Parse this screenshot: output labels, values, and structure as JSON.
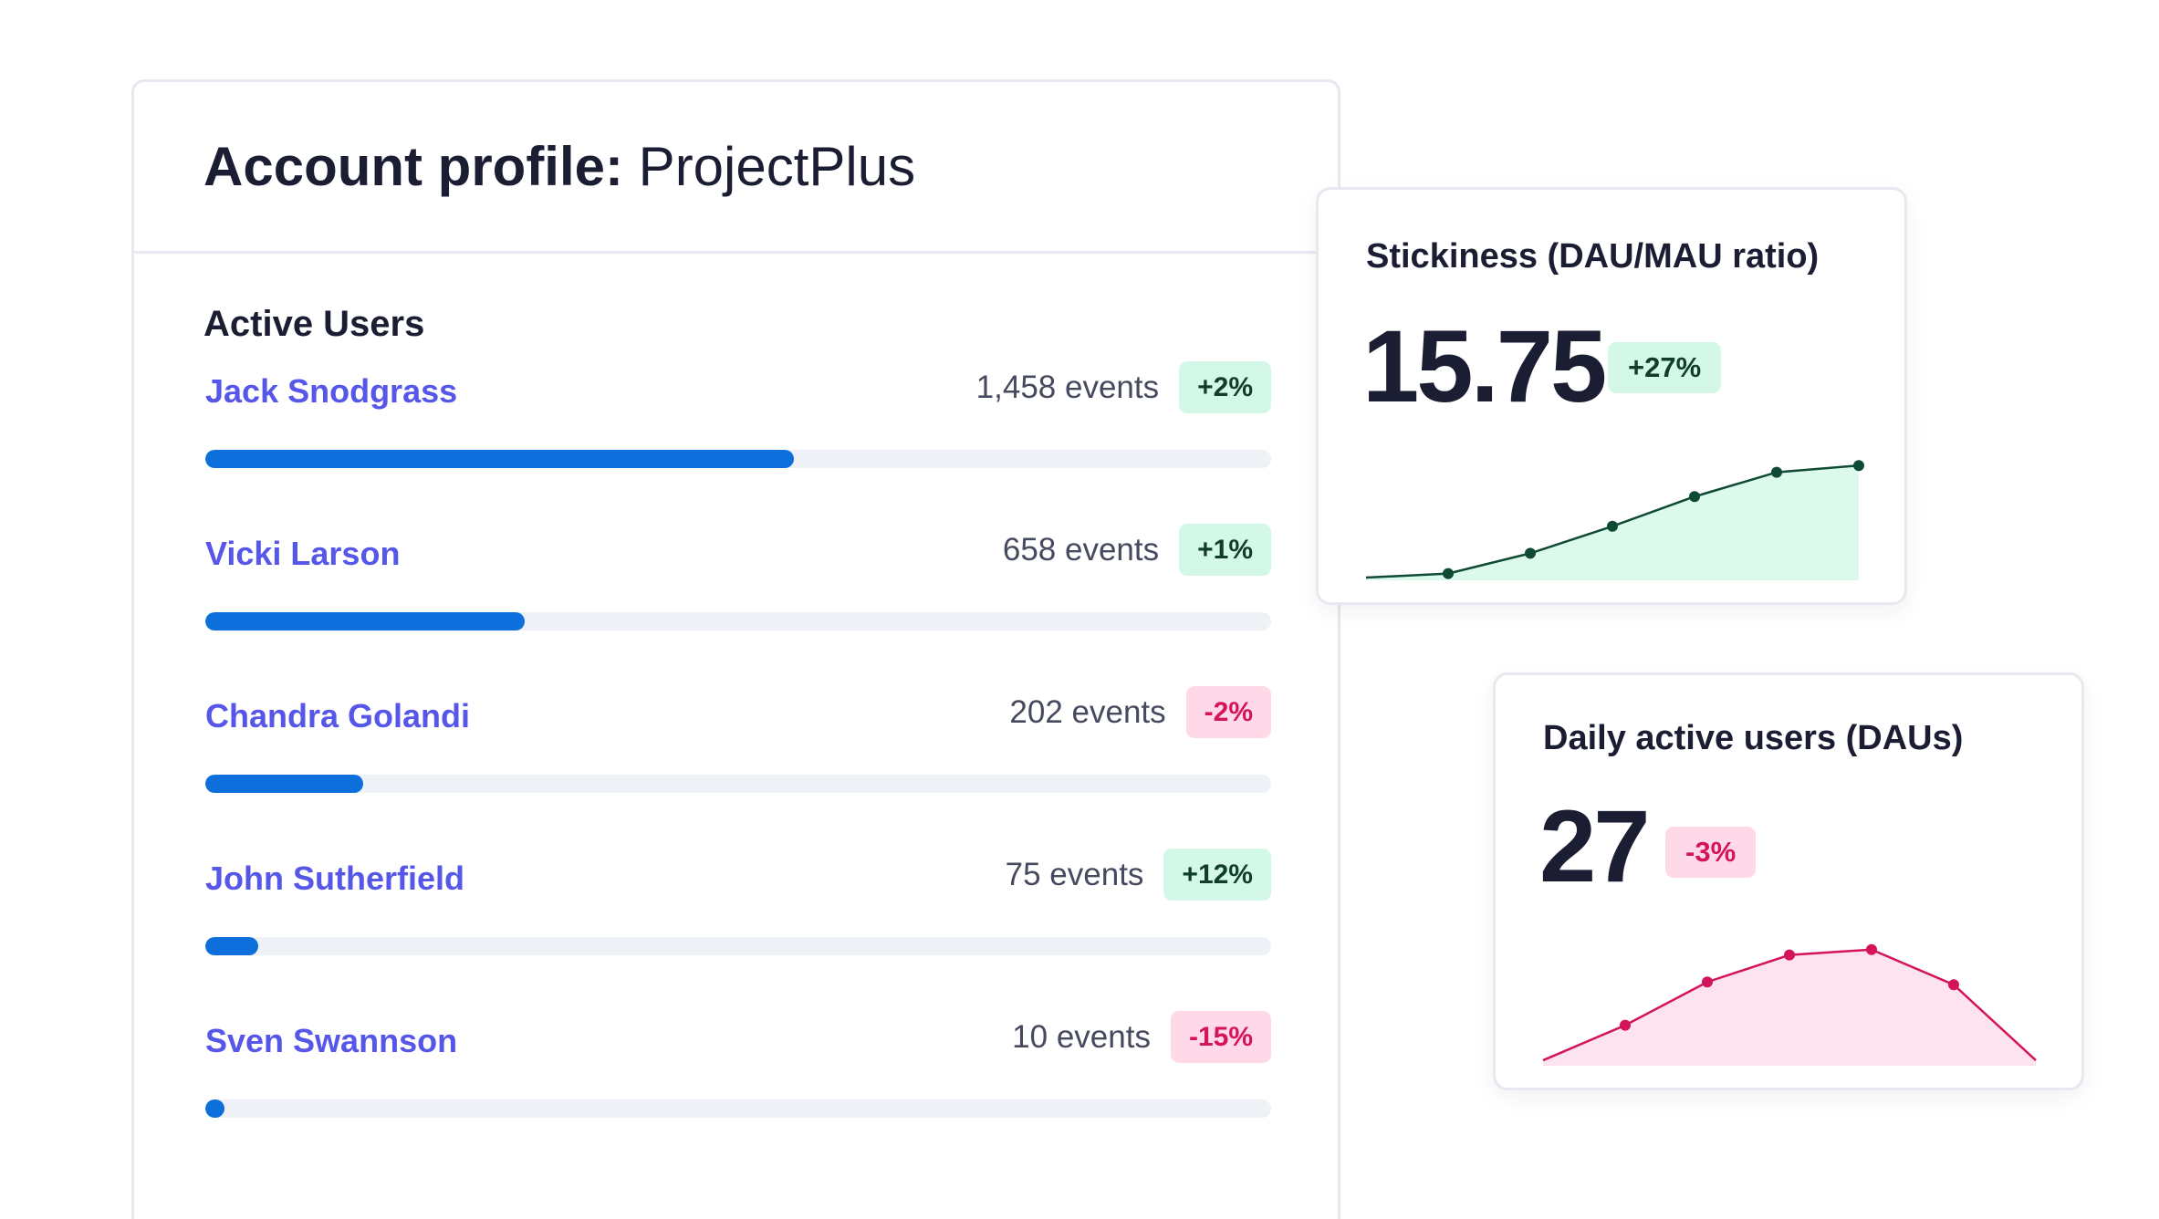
{
  "account": {
    "title_prefix": "Account profile:",
    "name": "ProjectPlus",
    "section_title": "Active Users",
    "users": [
      {
        "name": "Jack Snodgrass",
        "events": "1,458 events",
        "change": "+2%",
        "trend": "up",
        "progress": 0.552
      },
      {
        "name": "Vicki Larson",
        "events": "658 events",
        "change": "+1%",
        "trend": "up",
        "progress": 0.3
      },
      {
        "name": "Chandra Golandi",
        "events": "202 events",
        "change": "-2%",
        "trend": "down",
        "progress": 0.148
      },
      {
        "name": "John Sutherfield",
        "events": "75 events",
        "change": "+12%",
        "trend": "up",
        "progress": 0.05
      },
      {
        "name": "Sven Swannson",
        "events": "10 events",
        "change": "-15%",
        "trend": "down",
        "progress": 0.018
      }
    ]
  },
  "stickiness": {
    "title": "Stickiness (DAU/MAU ratio)",
    "value": "15.75",
    "change": "+27%"
  },
  "dau": {
    "title": "Daily active users (DAUs)",
    "value": "27",
    "change": "-3%"
  },
  "colors": {
    "accent_name": "#5656e8",
    "bar_fill": "#0d6fdb",
    "bar_track": "#eef1f6",
    "positive_bg": "#d4f8e8",
    "positive_text": "#103e2b",
    "negative_bg": "#ffd9e8",
    "negative_text": "#d4145a",
    "stickiness_line": "#0f4a35",
    "stickiness_area": "#dcfaeb",
    "dau_line": "#d4145a",
    "dau_area": "#fde3ee"
  },
  "chart_data": [
    {
      "type": "area",
      "title": "Stickiness (DAU/MAU ratio)",
      "x": [
        1,
        2,
        3,
        4,
        5,
        6,
        7
      ],
      "values": [
        2,
        5,
        20,
        40,
        62,
        80,
        85
      ],
      "ylim": [
        0,
        100
      ],
      "grid": false,
      "legend": "none"
    },
    {
      "type": "area",
      "title": "Daily active users (DAUs)",
      "x": [
        1,
        2,
        3,
        4,
        5,
        6,
        7
      ],
      "values": [
        4,
        30,
        62,
        82,
        86,
        60,
        4
      ],
      "ylim": [
        0,
        100
      ],
      "grid": false,
      "legend": "none"
    }
  ]
}
